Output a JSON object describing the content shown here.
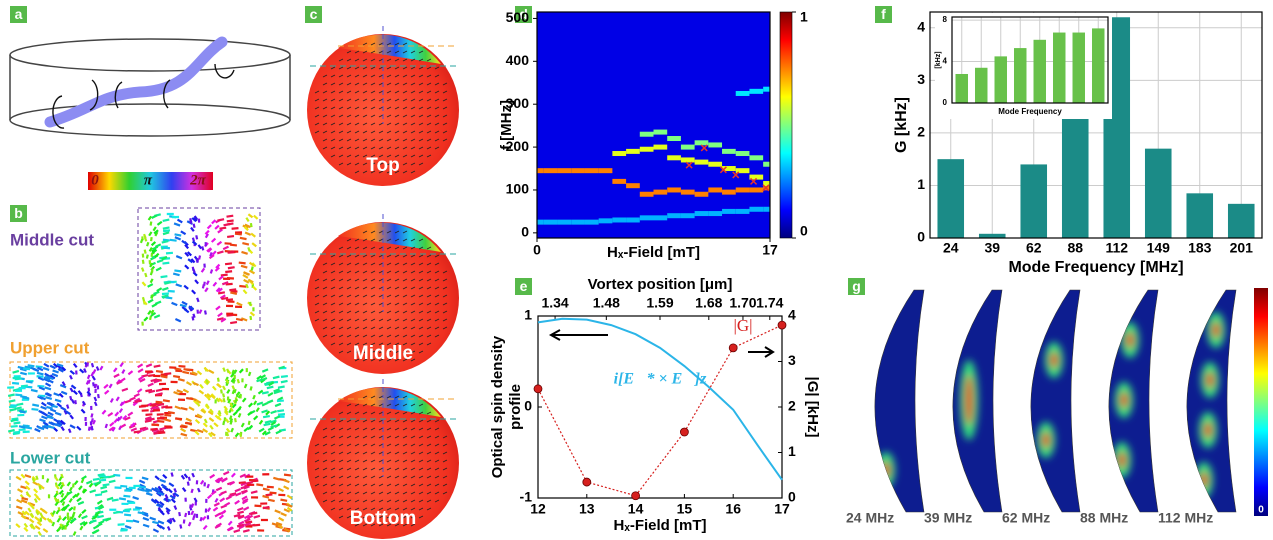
{
  "panels": {
    "a": {
      "label": "a",
      "colorbar_labels": [
        "0",
        "π",
        "2π"
      ]
    },
    "b": {
      "label": "b",
      "cuts": [
        "Middle cut",
        "Upper cut",
        "Lower cut"
      ]
    },
    "c": {
      "label": "c",
      "spheres": [
        "Top",
        "Middle",
        "Bottom"
      ]
    },
    "g": {
      "label": "g",
      "modes": [
        "24 MHz",
        "39 MHz",
        "62 MHz",
        "88 MHz",
        "112 MHz"
      ],
      "colorbar_labels": [
        "0"
      ]
    }
  },
  "chart_data": [
    {
      "type": "heatmap",
      "label": "d",
      "xlabel": "Hₓ-Field [mT]",
      "ylabel": "f [MHz]",
      "xlim": [
        0,
        17
      ],
      "xticks": [
        0,
        17
      ],
      "ylim": [
        -12,
        515
      ],
      "yticks": [
        0,
        100,
        200,
        300,
        400,
        500
      ],
      "colorbar_lim": [
        0,
        1
      ],
      "colorbar_ticks": [
        0,
        1
      ],
      "x": [
        0,
        1,
        2,
        3,
        4,
        5,
        6,
        7,
        8,
        9,
        10,
        11,
        12,
        13,
        14,
        15,
        16,
        17
      ],
      "series": [
        {
          "intensity": 0.75,
          "values": [
            145,
            145,
            145,
            145,
            145,
            145,
            120,
            110,
            90,
            95,
            100,
            95,
            90,
            100,
            95,
            100,
            100,
            105
          ]
        },
        {
          "intensity": 0.6,
          "values": [
            null,
            null,
            null,
            null,
            null,
            null,
            185,
            190,
            195,
            200,
            175,
            170,
            165,
            160,
            150,
            145,
            130,
            115
          ]
        },
        {
          "intensity": 0.5,
          "values": [
            null,
            null,
            null,
            null,
            null,
            null,
            null,
            null,
            230,
            235,
            220,
            200,
            210,
            205,
            190,
            185,
            175,
            160
          ]
        },
        {
          "intensity": 0.3,
          "values": [
            25,
            25,
            25,
            25,
            25,
            28,
            30,
            30,
            35,
            35,
            40,
            40,
            45,
            45,
            50,
            50,
            55,
            55
          ]
        },
        {
          "intensity": 0.35,
          "values": [
            null,
            null,
            null,
            null,
            null,
            null,
            null,
            null,
            null,
            null,
            null,
            null,
            null,
            null,
            null,
            325,
            330,
            335
          ]
        }
      ],
      "markers": {
        "color": "#e8342a",
        "x": [
          11.1,
          12.2,
          13.6,
          14.5,
          15.8,
          16.7
        ],
        "y": [
          158,
          198,
          147,
          135,
          120,
          105
        ]
      }
    },
    {
      "type": "line",
      "label": "e",
      "xlabel": "Hₓ-Field [mT]",
      "ylabel": [
        "Optical spin density",
        "profile"
      ],
      "y2label": "|G| [kHz]",
      "x2label": "Vortex position [μm]",
      "xlim": [
        12,
        17
      ],
      "xticks": [
        12,
        13,
        14,
        15,
        16,
        17
      ],
      "x2ticks": [
        {
          "value": 12.35,
          "label": "1.34"
        },
        {
          "value": 13.4,
          "label": "1.48"
        },
        {
          "value": 14.5,
          "label": "1.59"
        },
        {
          "value": 15.5,
          "label": "1.68"
        },
        {
          "value": 16.2,
          "label": "1.70"
        },
        {
          "value": 16.75,
          "label": "1.74"
        }
      ],
      "ylim": [
        -1,
        1
      ],
      "yticks": [
        -1,
        0,
        1
      ],
      "y2lim": [
        0,
        4
      ],
      "y2ticks": [
        0,
        1,
        2,
        3,
        4
      ],
      "x": [
        12,
        12.5,
        13,
        13.5,
        14,
        14.5,
        15,
        15.5,
        16,
        16.5,
        17
      ],
      "series": [
        {
          "name": "i[E⃗* × E⃗]z",
          "color": "#2bb5e8",
          "values": [
            0.93,
            0.97,
            0.96,
            0.9,
            0.8,
            0.65,
            0.45,
            0.22,
            -0.03,
            -0.42,
            -0.8
          ]
        },
        {
          "name": "|G|",
          "color": "#d6201e",
          "axis": "y2",
          "x": [
            12,
            13,
            14,
            15,
            16,
            17
          ],
          "values": [
            2.4,
            0.35,
            0.05,
            1.45,
            3.3,
            3.8
          ]
        }
      ]
    },
    {
      "type": "bar",
      "label": "f",
      "xlabel": "Mode Frequency [MHz]",
      "ylabel": "G [kHz]",
      "categories": [
        "24",
        "39",
        "62",
        "88",
        "112",
        "149",
        "183",
        "201"
      ],
      "values": [
        1.5,
        0.08,
        1.4,
        2.3,
        4.2,
        1.7,
        0.85,
        0.65
      ],
      "color": "#1b8b87",
      "ylim": [
        0,
        4.3
      ],
      "yticks": [
        0,
        1,
        2,
        3,
        4
      ],
      "grid": true
    },
    {
      "type": "bar",
      "xlabel": "Mode Frequency",
      "ylabel": "[kHz]",
      "categories": [
        null,
        null,
        null,
        null,
        null,
        null,
        null,
        null
      ],
      "values": [
        2.8,
        3.4,
        4.5,
        5.3,
        6.1,
        6.8,
        6.8,
        7.2
      ],
      "color": "#68c14a",
      "ylim": [
        0,
        8.3
      ],
      "yticks": [
        0,
        4,
        8
      ],
      "grid": true
    }
  ]
}
